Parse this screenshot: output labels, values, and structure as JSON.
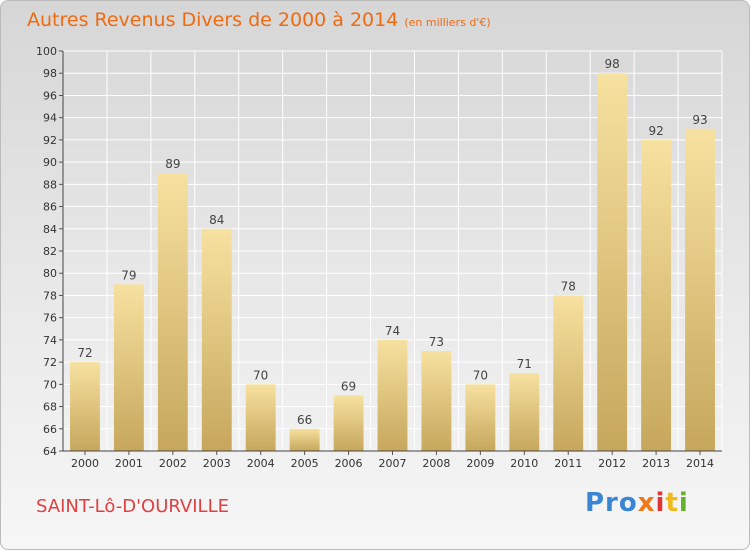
{
  "chart_data": {
    "type": "bar",
    "title": "Autres Revenus Divers de 2000 à 2014",
    "unit_note": "(en milliers d'€)",
    "categories": [
      "2000",
      "2001",
      "2002",
      "2003",
      "2004",
      "2005",
      "2006",
      "2007",
      "2008",
      "2009",
      "2010",
      "2011",
      "2012",
      "2013",
      "2014"
    ],
    "values": [
      72,
      79,
      89,
      84,
      70,
      66,
      69,
      74,
      73,
      70,
      71,
      78,
      98,
      92,
      93
    ],
    "ylim": [
      64,
      100
    ],
    "yticks": [
      64,
      66,
      68,
      70,
      72,
      74,
      76,
      78,
      80,
      82,
      84,
      86,
      88,
      90,
      92,
      94,
      96,
      98,
      100
    ],
    "grid": true,
    "xlabel": "",
    "ylabel": ""
  },
  "footer": {
    "commune": "SAINT-Lô-D'OURVILLE",
    "logo": {
      "p1": "Pro",
      "p2": "x",
      "p3": "i",
      "p4": "t",
      "p5": "i"
    }
  },
  "colors": {
    "title": "#f06a10",
    "commune": "#e04040",
    "bar_light": "#f7e1a0",
    "bar_dark": "#c6a75c",
    "grid": "#ffffff"
  }
}
